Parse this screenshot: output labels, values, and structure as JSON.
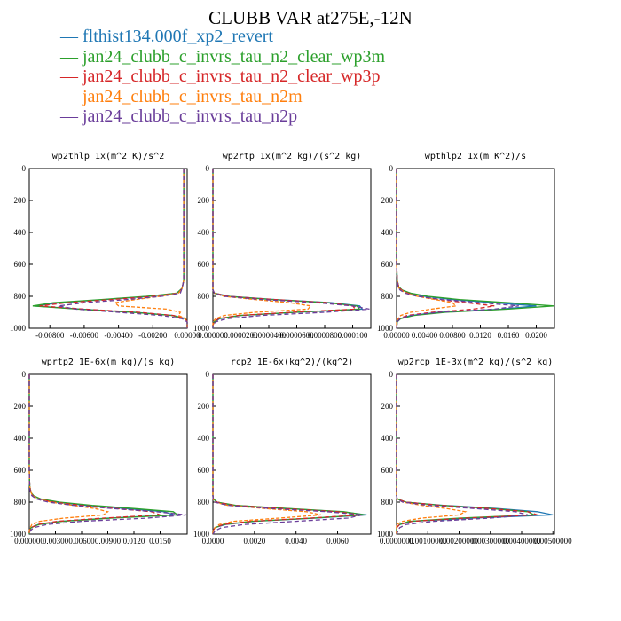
{
  "title": "CLUBB VAR at275E,-12N",
  "legend": [
    {
      "label": "flthist134.000f_xp2_revert",
      "color": "#1f77b4"
    },
    {
      "label": "jan24_clubb_c_invrs_tau_n2_clear_wp3m",
      "color": "#2ca02c"
    },
    {
      "label": "jan24_clubb_c_invrs_tau_n2_clear_wp3p",
      "color": "#d62728"
    },
    {
      "label": "jan24_clubb_c_invrs_tau_n2m",
      "color": "#ff7f0e"
    },
    {
      "label": "jan24_clubb_c_invrs_tau_n2p",
      "color": "#6a3d9a"
    }
  ],
  "chart_data": [
    {
      "type": "line",
      "title": "wp2thlp   1x(m^2 K)/s^2",
      "xlim": [
        -0.0092,
        0.0
      ],
      "ylim": [
        1000,
        0
      ],
      "xticks": [
        -0.008,
        -0.006,
        -0.004,
        -0.002,
        0.0
      ],
      "xtick_labels": [
        "-0.00800",
        "-0.00600",
        "-0.00400",
        "-0.00200",
        "0.00000"
      ],
      "yticks": [
        0,
        200,
        400,
        600,
        800,
        1000
      ],
      "y": [
        0,
        200,
        400,
        600,
        700,
        750,
        780,
        800,
        820,
        840,
        860,
        880,
        900,
        920,
        940,
        960,
        980,
        1000
      ],
      "series": [
        {
          "values": [
            -0.0002,
            -0.0002,
            -0.0002,
            -0.0002,
            -0.0002,
            -0.0003,
            -0.0006,
            -0.0022,
            -0.0048,
            -0.0074,
            -0.0089,
            -0.0062,
            -0.003,
            -0.0008,
            -0.0001,
            0.0,
            0.0,
            0.0
          ]
        },
        {
          "values": [
            -0.0002,
            -0.0002,
            -0.0002,
            -0.0002,
            -0.0002,
            -0.0003,
            -0.0006,
            -0.0024,
            -0.005,
            -0.0078,
            -0.009,
            -0.0064,
            -0.0032,
            -0.0009,
            -0.0001,
            0.0,
            0.0,
            0.0
          ]
        },
        {
          "values": [
            -0.0002,
            -0.0002,
            -0.0002,
            -0.0002,
            -0.0002,
            -0.0003,
            -0.0005,
            -0.002,
            -0.0044,
            -0.007,
            -0.0086,
            -0.006,
            -0.0028,
            -0.0008,
            -0.0001,
            0.0,
            0.0,
            0.0
          ]
        },
        {
          "values": [
            -0.0002,
            -0.0002,
            -0.0002,
            -0.0002,
            -0.0002,
            -0.0003,
            -0.0005,
            -0.0016,
            -0.003,
            -0.0042,
            -0.004,
            -0.0012,
            -0.0004,
            -0.0005,
            -0.0001,
            0.0,
            0.0,
            0.0
          ]
        },
        {
          "values": [
            -0.0002,
            -0.0002,
            -0.0002,
            -0.0002,
            -0.0002,
            -0.0003,
            -0.0004,
            -0.0015,
            -0.0035,
            -0.006,
            -0.0075,
            -0.0065,
            -0.004,
            -0.0015,
            -0.0003,
            0.0,
            0.0,
            0.0
          ]
        }
      ]
    },
    {
      "type": "line",
      "title": "wp2rtp   1x(m^2 kg)/(s^2 kg)",
      "xlim": [
        0.0,
        0.000113
      ],
      "ylim": [
        1000,
        0
      ],
      "xticks": [
        0.0,
        2e-05,
        4e-05,
        6e-05,
        8e-05,
        0.0001
      ],
      "xtick_labels": [
        "0.000000",
        "0.0000200",
        "0.0000400",
        "0.0000600",
        "0.0000800",
        "0.000100"
      ],
      "yticks": [
        0,
        200,
        400,
        600,
        800,
        1000
      ],
      "y": [
        0,
        200,
        400,
        600,
        700,
        760,
        780,
        800,
        820,
        840,
        860,
        880,
        900,
        920,
        940,
        960,
        980,
        1000
      ],
      "series": [
        {
          "values": [
            0.0,
            0.0,
            0.0,
            0.0,
            0.0,
            0.0,
            1e-06,
            1.2e-05,
            4.5e-05,
            8.5e-05,
            0.000105,
            0.000107,
            6e-05,
            2e-05,
            5e-06,
            1e-06,
            0.0,
            0.0
          ]
        },
        {
          "values": [
            0.0,
            0.0,
            0.0,
            0.0,
            0.0,
            0.0,
            1e-06,
            1e-05,
            4.2e-05,
            8.2e-05,
            0.000103,
            0.000105,
            5.8e-05,
            1.9e-05,
            4e-06,
            1e-06,
            0.0,
            0.0
          ]
        },
        {
          "values": [
            0.0,
            0.0,
            0.0,
            0.0,
            0.0,
            0.0,
            1e-06,
            1.1e-05,
            4.4e-05,
            8.3e-05,
            0.0001,
            0.000102,
            5.6e-05,
            1.8e-05,
            4e-06,
            1e-06,
            0.0,
            0.0
          ]
        },
        {
          "values": [
            0.0,
            0.0,
            0.0,
            0.0,
            0.0,
            0.0,
            1e-06,
            8e-06,
            3e-05,
            5.5e-05,
            7e-05,
            6.8e-05,
            3e-05,
            8e-06,
            2e-06,
            0.0,
            0.0,
            0.0
          ]
        },
        {
          "values": [
            0.0,
            0.0,
            0.0,
            0.0,
            0.0,
            0.0,
            1e-06,
            8e-06,
            3.5e-05,
            7.5e-05,
            0.0001,
            0.000112,
            8e-05,
            3.5e-05,
            1e-05,
            2e-06,
            0.0,
            0.0
          ]
        }
      ]
    },
    {
      "type": "line",
      "title": "wpthlp2   1x(m K^2)/s",
      "xlim": [
        0.0,
        0.0226
      ],
      "ylim": [
        1000,
        0
      ],
      "xticks": [
        0.0,
        0.004,
        0.008,
        0.012,
        0.016,
        0.02
      ],
      "xtick_labels": [
        "0.00000",
        "0.00400",
        "0.00800",
        "0.0120",
        "0.0160",
        "0.0200"
      ],
      "yticks": [
        0,
        200,
        400,
        600,
        800,
        1000
      ],
      "y": [
        0,
        200,
        400,
        600,
        700,
        740,
        760,
        780,
        800,
        820,
        840,
        860,
        880,
        900,
        920,
        940,
        960,
        1000
      ],
      "series": [
        {
          "values": [
            0.0,
            0.0,
            0.0,
            0.0,
            0.0001,
            0.0003,
            0.0008,
            0.0018,
            0.004,
            0.008,
            0.014,
            0.02,
            0.015,
            0.006,
            0.002,
            0.0005,
            0.0001,
            0.0
          ]
        },
        {
          "values": [
            0.0,
            0.0,
            0.0,
            0.0,
            0.0001,
            0.0003,
            0.0008,
            0.002,
            0.0045,
            0.009,
            0.016,
            0.0225,
            0.016,
            0.007,
            0.0025,
            0.0006,
            0.0001,
            0.0
          ]
        },
        {
          "values": [
            0.0,
            0.0,
            0.0,
            0.0,
            0.0001,
            0.0003,
            0.0007,
            0.0016,
            0.0032,
            0.006,
            0.01,
            0.014,
            0.011,
            0.005,
            0.0015,
            0.0004,
            0.0001,
            0.0
          ]
        },
        {
          "values": [
            0.0,
            0.0,
            0.0,
            0.0,
            0.0001,
            0.0002,
            0.0006,
            0.0014,
            0.003,
            0.0055,
            0.008,
            0.0085,
            0.005,
            0.002,
            0.0006,
            0.0002,
            0.0,
            0.0
          ]
        },
        {
          "values": [
            0.0,
            0.0,
            0.0,
            0.0,
            0.0001,
            0.0002,
            0.0005,
            0.0012,
            0.003,
            0.0065,
            0.012,
            0.0175,
            0.014,
            0.006,
            0.002,
            0.0005,
            0.0001,
            0.0
          ]
        }
      ]
    },
    {
      "type": "line",
      "title": "wprtp2   1E-6x(m kg)/(s kg)",
      "xlim": [
        0.0,
        0.0181
      ],
      "ylim": [
        1000,
        0
      ],
      "xticks": [
        0.0,
        0.003,
        0.006,
        0.009,
        0.012,
        0.015
      ],
      "xtick_labels": [
        "0.000000",
        "0.00300",
        "0.00600",
        "0.00900",
        "0.0120",
        "0.0150"
      ],
      "yticks": [
        0,
        200,
        400,
        600,
        800,
        1000
      ],
      "y": [
        0,
        200,
        400,
        600,
        700,
        740,
        760,
        780,
        800,
        820,
        840,
        860,
        880,
        900,
        920,
        940,
        960,
        980,
        1000
      ],
      "series": [
        {
          "values": [
            0.0,
            0.0,
            0.0,
            0.0,
            5e-05,
            0.0002,
            0.0005,
            0.0012,
            0.003,
            0.0065,
            0.011,
            0.0155,
            0.0165,
            0.009,
            0.0035,
            0.001,
            0.0002,
            0.0,
            0.0
          ]
        },
        {
          "values": [
            0.0,
            0.0,
            0.0,
            0.0,
            5e-05,
            0.0002,
            0.0005,
            0.0013,
            0.0035,
            0.0072,
            0.012,
            0.0165,
            0.017,
            0.0095,
            0.0038,
            0.0011,
            0.0002,
            0.0,
            0.0
          ]
        },
        {
          "values": [
            0.0,
            0.0,
            0.0,
            0.0,
            5e-05,
            0.0002,
            0.0004,
            0.0011,
            0.0028,
            0.006,
            0.01,
            0.014,
            0.015,
            0.0085,
            0.0032,
            0.0009,
            0.0002,
            0.0,
            0.0
          ]
        },
        {
          "values": [
            0.0,
            0.0,
            0.0,
            0.0,
            5e-05,
            0.0002,
            0.0004,
            0.001,
            0.0025,
            0.005,
            0.0075,
            0.009,
            0.0085,
            0.004,
            0.0012,
            0.0003,
            0.0001,
            0.0,
            0.0
          ]
        },
        {
          "values": [
            0.0,
            0.0,
            0.0,
            0.0,
            5e-05,
            0.0001,
            0.0003,
            0.0008,
            0.0022,
            0.005,
            0.0095,
            0.0145,
            0.018,
            0.0135,
            0.006,
            0.002,
            0.0005,
            0.0001,
            0.0
          ]
        }
      ]
    },
    {
      "type": "line",
      "title": "rcp2   1E-6x(kg^2)/(kg^2)",
      "xlim": [
        0.0,
        0.0076
      ],
      "ylim": [
        1000,
        0
      ],
      "xticks": [
        0.0,
        0.002,
        0.004,
        0.006
      ],
      "xtick_labels": [
        "0.0000",
        "0.0020",
        "0.0040",
        "0.0060"
      ],
      "yticks": [
        0,
        200,
        400,
        600,
        800,
        1000
      ],
      "y": [
        0,
        200,
        400,
        600,
        700,
        760,
        780,
        800,
        820,
        840,
        860,
        880,
        900,
        920,
        940,
        960,
        980,
        1000
      ],
      "series": [
        {
          "values": [
            0.0,
            0.0,
            0.0,
            0.0,
            0.0,
            0.0,
            2e-05,
            0.0002,
            0.001,
            0.0035,
            0.0062,
            0.0074,
            0.005,
            0.002,
            0.0006,
            0.0001,
            0.0,
            0.0
          ]
        },
        {
          "values": [
            0.0,
            0.0,
            0.0,
            0.0,
            0.0,
            0.0,
            2e-05,
            0.0002,
            0.0011,
            0.0036,
            0.0063,
            0.0073,
            0.0048,
            0.0019,
            0.0005,
            0.0001,
            0.0,
            0.0
          ]
        },
        {
          "values": [
            0.0,
            0.0,
            0.0,
            0.0,
            0.0,
            0.0,
            2e-05,
            0.0002,
            0.001,
            0.0034,
            0.006,
            0.0071,
            0.0047,
            0.0018,
            0.0005,
            0.0001,
            0.0,
            0.0
          ]
        },
        {
          "values": [
            0.0,
            0.0,
            0.0,
            0.0,
            0.0,
            0.0,
            1e-05,
            0.0001,
            0.0007,
            0.0025,
            0.0045,
            0.0052,
            0.0032,
            0.001,
            0.0003,
            0.0001,
            0.0,
            0.0
          ]
        },
        {
          "values": [
            0.0,
            0.0,
            0.0,
            0.0,
            0.0,
            0.0,
            1e-05,
            0.0001,
            0.0007,
            0.0028,
            0.0055,
            0.0072,
            0.0065,
            0.004,
            0.0015,
            0.0004,
            0.0001,
            0.0
          ]
        }
      ]
    },
    {
      "type": "line",
      "title": "wp2rcp   1E-3x(m^2 kg)/(s^2 kg)",
      "xlim": [
        0.0,
        0.00505
      ],
      "ylim": [
        1000,
        0
      ],
      "xticks": [
        0.0,
        0.001,
        0.002,
        0.003,
        0.004,
        0.005
      ],
      "xtick_labels": [
        "0.0000000",
        "0.00100000",
        "0.00200000",
        "0.00300000",
        "0.00400000",
        "0.00500000"
      ],
      "yticks": [
        0,
        200,
        400,
        600,
        800,
        1000
      ],
      "y": [
        0,
        200,
        400,
        600,
        700,
        760,
        780,
        800,
        820,
        840,
        860,
        880,
        900,
        920,
        940,
        960,
        1000
      ],
      "series": [
        {
          "values": [
            0.0,
            0.0,
            0.0,
            0.0,
            0.0,
            0.0,
            2e-05,
            0.0003,
            0.0015,
            0.0032,
            0.0045,
            0.005,
            0.0025,
            0.0005,
            0.0001,
            0.0,
            0.0
          ]
        },
        {
          "values": [
            0.0,
            0.0,
            0.0,
            0.0,
            0.0,
            0.0,
            2e-05,
            0.0003,
            0.0014,
            0.003,
            0.0042,
            0.0044,
            0.002,
            0.0004,
            0.0001,
            0.0,
            0.0
          ]
        },
        {
          "values": [
            0.0,
            0.0,
            0.0,
            0.0,
            0.0,
            0.0,
            2e-05,
            0.0003,
            0.0014,
            0.003,
            0.0042,
            0.0045,
            0.0022,
            0.0005,
            0.0001,
            0.0,
            0.0
          ]
        },
        {
          "values": [
            0.0,
            0.0,
            0.0,
            0.0,
            0.0,
            0.0,
            1e-05,
            0.0002,
            0.0008,
            0.0016,
            0.0022,
            0.002,
            0.0008,
            0.0002,
            0.0,
            0.0,
            0.0
          ]
        },
        {
          "values": [
            0.0,
            0.0,
            0.0,
            0.0,
            0.0,
            0.0,
            1e-05,
            0.0002,
            0.001,
            0.0025,
            0.0038,
            0.0042,
            0.003,
            0.0012,
            0.0003,
            0.0001,
            0.0
          ]
        }
      ]
    }
  ]
}
